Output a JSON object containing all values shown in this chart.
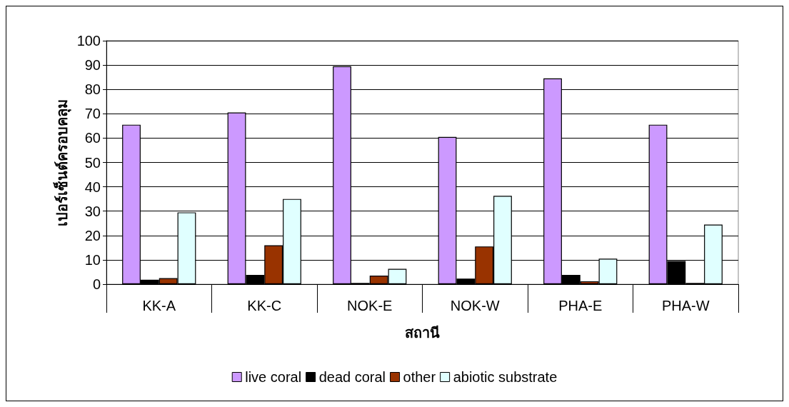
{
  "chart_data": {
    "type": "bar",
    "xlabel": "สถานี",
    "ylabel": "เปอร์เซ็นต์ครอบคลุม",
    "categories": [
      "KK-A",
      "KK-C",
      "NOK-E",
      "NOK-W",
      "PHA-E",
      "PHA-W"
    ],
    "series": [
      {
        "name": "live coral",
        "color": "#cc99ff",
        "values": [
          65.5,
          70.5,
          89.5,
          60.5,
          84.5,
          65.5
        ]
      },
      {
        "name": "dead coral",
        "color": "#000000",
        "values": [
          1.8,
          3.8,
          0.5,
          2.3,
          3.8,
          9.5
        ]
      },
      {
        "name": "other",
        "color": "#993300",
        "values": [
          2.5,
          16,
          3.5,
          15.5,
          1.2,
          0.5
        ]
      },
      {
        "name": "abiotic substrate",
        "color": "#e0ffff",
        "values": [
          29.5,
          35,
          6.3,
          36.3,
          10.5,
          24.5
        ]
      }
    ],
    "ylim": [
      0,
      100
    ],
    "yticks": [
      0,
      10,
      20,
      30,
      40,
      50,
      60,
      70,
      80,
      90,
      100
    ],
    "grid": "y",
    "legend": "bottom"
  }
}
